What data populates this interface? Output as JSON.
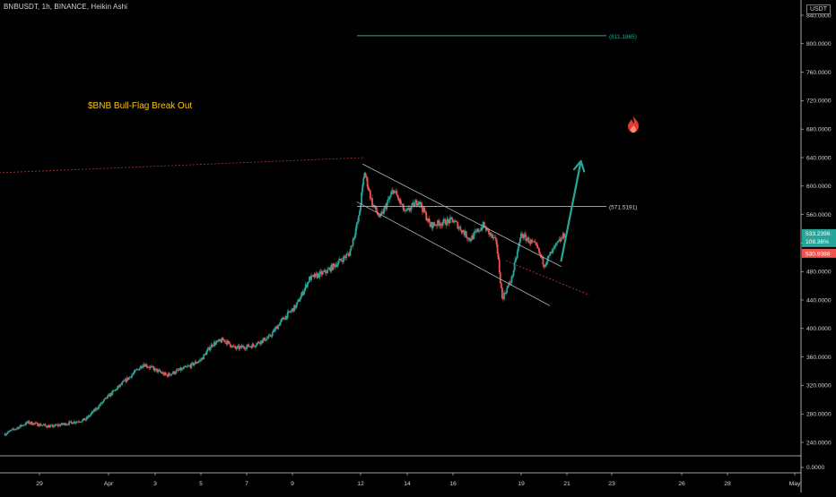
{
  "header": {
    "symbol_line": "BNBUSDT, 1h, BINANCE, Heikin Ashi",
    "currency": "USDT"
  },
  "annotation": {
    "text": "$BNB Bull-Flag Break Out"
  },
  "colors": {
    "background": "#000000",
    "up_candle": "#26a69a",
    "down_candle": "#ef5350",
    "teal_line": "#26a69a",
    "annotation_text": "#f5c518",
    "drawing_lines": "#b2b5be",
    "fire_icon": "#e53935"
  },
  "icons": {
    "fire": "fire-icon",
    "arrow": "up-right-arrow-icon"
  },
  "chart_data": {
    "type": "candlestick",
    "candle_style": "Heikin Ashi",
    "x_axis": {
      "ticks": [
        {
          "label": "29",
          "date": "2021-03-29"
        },
        {
          "label": "Apr",
          "date": "2021-04-01"
        },
        {
          "label": "3",
          "date": "2021-04-03"
        },
        {
          "label": "5",
          "date": "2021-04-05"
        },
        {
          "label": "7",
          "date": "2021-04-07"
        },
        {
          "label": "9",
          "date": "2021-04-09"
        },
        {
          "label": "12",
          "date": "2021-04-12"
        },
        {
          "label": "14",
          "date": "2021-04-14"
        },
        {
          "label": "16",
          "date": "2021-04-16"
        },
        {
          "label": "19",
          "date": "2021-04-19"
        },
        {
          "label": "21",
          "date": "2021-04-21"
        },
        {
          "label": "23",
          "date": "2021-04-23"
        },
        {
          "label": "26",
          "date": "2021-04-26"
        },
        {
          "label": "28",
          "date": "2021-04-28"
        },
        {
          "label": "May",
          "date": "2021-05-01"
        }
      ]
    },
    "y_axis": {
      "scale": "linear",
      "range": [
        225,
        845
      ],
      "ticks": [
        "840.0000",
        "800.0000",
        "760.0000",
        "720.0000",
        "680.0000",
        "640.0000",
        "600.0000",
        "560.0000",
        "520.0000",
        "480.0000",
        "440.0000",
        "400.0000",
        "360.0000",
        "320.0000",
        "280.0000",
        "240.0000"
      ],
      "bottom_pane_tick": "0.0000"
    },
    "price_labels": {
      "last_price": "533.2396",
      "change": "108.36%",
      "red_label": "530.9388"
    },
    "levels": [
      {
        "name": "target",
        "value": 811.1865,
        "label": "(811.1865)"
      },
      {
        "name": "resistance",
        "value": 571.5191,
        "label": "(571.5191)"
      }
    ],
    "series_knots": [
      [
        "2021-03-27T12:00",
        252
      ],
      [
        "2021-03-28T12:00",
        268
      ],
      [
        "2021-03-29T12:00",
        262
      ],
      [
        "2021-03-31T00:00",
        272
      ],
      [
        "2021-04-01T00:00",
        305
      ],
      [
        "2021-04-02T00:00",
        335
      ],
      [
        "2021-04-02T12:00",
        350
      ],
      [
        "2021-04-03T12:00",
        334
      ],
      [
        "2021-04-04T12:00",
        347
      ],
      [
        "2021-04-05T00:00",
        356
      ],
      [
        "2021-04-05T12:00",
        378
      ],
      [
        "2021-04-06T00:00",
        384
      ],
      [
        "2021-04-06T12:00",
        372
      ],
      [
        "2021-04-07T06:00",
        376
      ],
      [
        "2021-04-08T00:00",
        388
      ],
      [
        "2021-04-08T12:00",
        410
      ],
      [
        "2021-04-09T04:00",
        432
      ],
      [
        "2021-04-09T18:00",
        470
      ],
      [
        "2021-04-10T12:00",
        480
      ],
      [
        "2021-04-11T12:00",
        505
      ],
      [
        "2021-04-11T22:00",
        555
      ],
      [
        "2021-04-12T04:00",
        620
      ],
      [
        "2021-04-12T12:00",
        575
      ],
      [
        "2021-04-12T20:00",
        555
      ],
      [
        "2021-04-13T10:00",
        595
      ],
      [
        "2021-04-13T22:00",
        562
      ],
      [
        "2021-04-14T12:00",
        580
      ],
      [
        "2021-04-15T00:00",
        545
      ],
      [
        "2021-04-16T00:00",
        552
      ],
      [
        "2021-04-16T18:00",
        525
      ],
      [
        "2021-04-17T08:00",
        545
      ],
      [
        "2021-04-17T22:00",
        520
      ],
      [
        "2021-04-18T04:00",
        442
      ],
      [
        "2021-04-18T14:00",
        470
      ],
      [
        "2021-04-19T00:00",
        532
      ],
      [
        "2021-04-19T16:00",
        515
      ],
      [
        "2021-04-20T00:00",
        490
      ],
      [
        "2021-04-20T12:00",
        515
      ],
      [
        "2021-04-20T22:00",
        533
      ]
    ],
    "drawings": {
      "flag_channel_upper": {
        "start": [
          "2021-04-12T02:00",
          631
        ],
        "end": [
          "2021-04-20T18:00",
          487
        ]
      },
      "flag_channel_lower": {
        "start": [
          "2021-04-11T20:00",
          578
        ],
        "end": [
          "2021-04-20T06:00",
          432
        ]
      },
      "channel_extension_dotted": {
        "start": [
          "2021-04-18T08:00",
          495
        ],
        "end": [
          "2021-04-22T00:00",
          447
        ]
      },
      "prior_high_trend_dotted": {
        "start": [
          "2021-03-26T00:00",
          617
        ],
        "end": [
          "2021-04-12T04:00",
          640
        ]
      },
      "breakout_arrow": {
        "start": [
          "2021-04-20T18:00",
          495
        ],
        "end": [
          "2021-04-21T15:00",
          635
        ]
      }
    }
  }
}
